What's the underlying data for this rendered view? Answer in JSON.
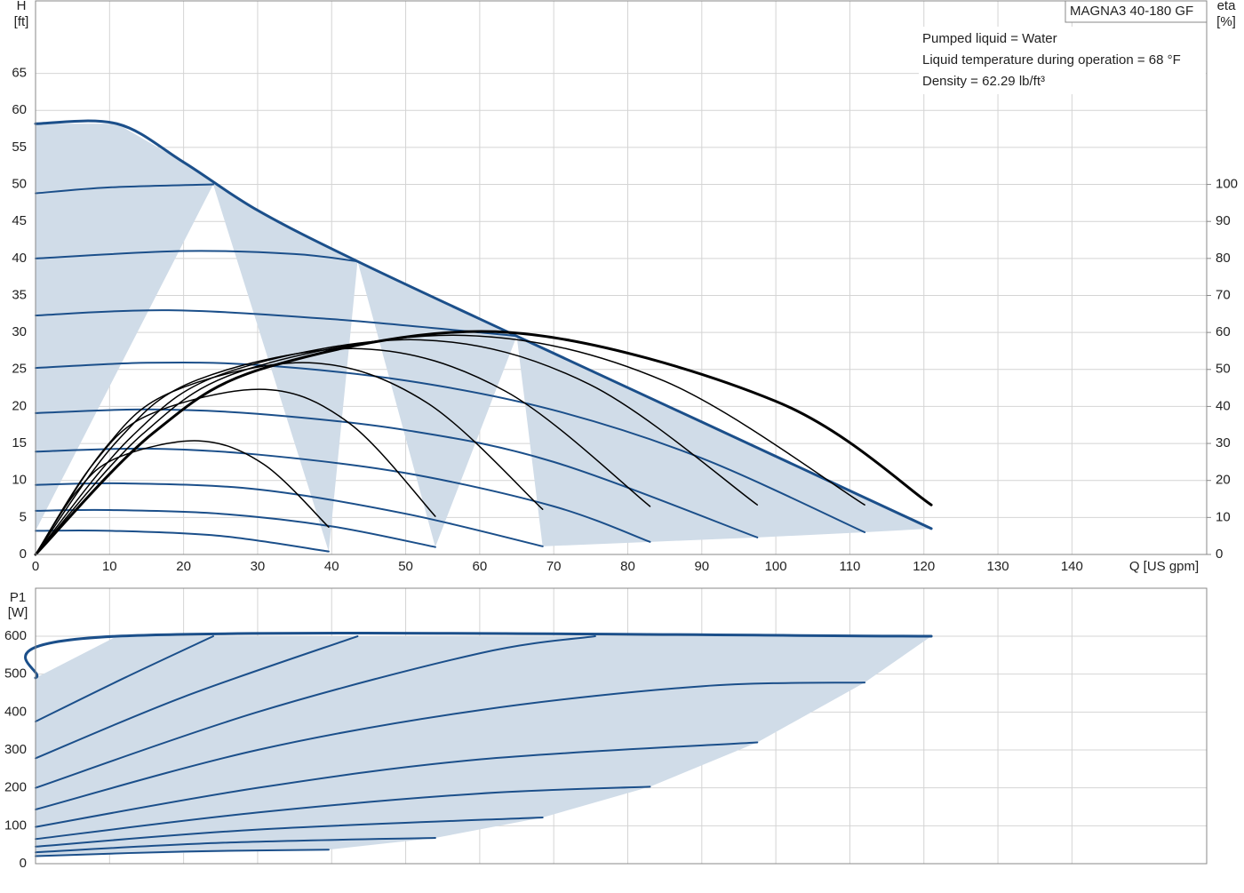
{
  "title": "MAGNA3 40-180 GF",
  "notes": [
    "Pumped liquid = Water",
    "Liquid temperature during operation = 68 °F",
    "Density = 62.29 lb/ft³"
  ],
  "chart_data": [
    {
      "type": "line",
      "y_label": "H",
      "y_unit": "[ft]",
      "y2_label": "eta",
      "y2_unit": "[%]",
      "x_label": "Q [US gpm]",
      "xlim": [
        0,
        158.2
      ],
      "xticks": [
        0,
        10,
        20,
        30,
        40,
        50,
        60,
        70,
        80,
        90,
        100,
        110,
        120,
        130,
        140
      ],
      "ylim": [
        0,
        74.8
      ],
      "yticks": [
        0,
        5,
        10,
        15,
        20,
        25,
        30,
        35,
        40,
        45,
        50,
        55,
        60,
        65
      ],
      "y2lim": [
        0,
        149.6
      ],
      "y2ticks": [
        0,
        10,
        20,
        30,
        40,
        50,
        60,
        70,
        80,
        90,
        100
      ],
      "grid": true,
      "shade_color": "#d0dce8",
      "series": [
        {
          "color": "#1b4f8a",
          "width": 3,
          "x": [
            0,
            11,
            20,
            30,
            43.5,
            65,
            90,
            121
          ],
          "values": [
            58.2,
            58.2,
            53,
            46.5,
            39.6,
            29.5,
            17.9,
            3.5
          ]
        },
        {
          "color": "#1b4f8a",
          "width": 2,
          "x": [
            0,
            10,
            24
          ],
          "values": [
            48.8,
            49.6,
            50
          ]
        },
        {
          "color": "#1b4f8a",
          "width": 2,
          "x": [
            0,
            20,
            35,
            43.5
          ],
          "values": [
            40,
            41,
            40.6,
            39.6
          ]
        },
        {
          "color": "#1b4f8a",
          "width": 2,
          "x": [
            0,
            18,
            40,
            60,
            65
          ],
          "values": [
            32.3,
            33,
            31.8,
            30,
            29.5
          ]
        },
        {
          "color": "#1b4f8a",
          "width": 2,
          "x": [
            0,
            15,
            30,
            50,
            70,
            90,
            112
          ],
          "values": [
            25.2,
            25.9,
            25.6,
            23.5,
            19.5,
            13,
            3
          ]
        },
        {
          "color": "#1b4f8a",
          "width": 2,
          "x": [
            0,
            15,
            30,
            50,
            70,
            97.5
          ],
          "values": [
            19.1,
            19.6,
            19,
            16.8,
            12.5,
            2.3
          ]
        },
        {
          "color": "#1b4f8a",
          "width": 2,
          "x": [
            0,
            15,
            30,
            50,
            70,
            83
          ],
          "values": [
            13.9,
            14.3,
            13.5,
            11,
            6.5,
            1.7
          ]
        },
        {
          "color": "#1b4f8a",
          "width": 2,
          "x": [
            0,
            12,
            30,
            50,
            68.5
          ],
          "values": [
            9.4,
            9.6,
            8.8,
            5.5,
            1.1
          ]
        },
        {
          "color": "#1b4f8a",
          "width": 2,
          "x": [
            0,
            10,
            25,
            40,
            54
          ],
          "values": [
            5.9,
            6,
            5.5,
            3.8,
            1
          ]
        },
        {
          "color": "#1b4f8a",
          "width": 2,
          "x": [
            0,
            10,
            25,
            39.6
          ],
          "values": [
            3.2,
            3.2,
            2.5,
            0.4
          ]
        },
        {
          "color": "#000000",
          "width": 1.5,
          "axis": "y2",
          "x": [
            0,
            5.5,
            11,
            22,
            30.8,
            39.6
          ],
          "values": [
            0,
            16.9,
            26.1,
            30.7,
            24.4,
            7.4
          ]
        },
        {
          "color": "#000000",
          "width": 1.5,
          "axis": "y2",
          "x": [
            0,
            7.8,
            15.5,
            31,
            42.5,
            54
          ],
          "values": [
            0,
            24.5,
            37.9,
            44.6,
            35.3,
            10.3
          ]
        },
        {
          "color": "#000000",
          "width": 1.5,
          "axis": "y2",
          "x": [
            0,
            9.3,
            18.5,
            37,
            52.8,
            68.5
          ],
          "values": [
            0,
            28.5,
            44,
            51.8,
            41.1,
            12.2
          ]
        },
        {
          "color": "#000000",
          "width": 1.5,
          "axis": "y2",
          "x": [
            0,
            11,
            22,
            44,
            63.5,
            83
          ],
          "values": [
            0,
            30.6,
            47.3,
            55.6,
            44.1,
            13
          ]
        },
        {
          "color": "#000000",
          "width": 1.5,
          "axis": "y2",
          "x": [
            0,
            13,
            26,
            52,
            74.8,
            97.5
          ],
          "values": [
            0,
            31.9,
            49.3,
            58,
            46,
            13.4
          ]
        },
        {
          "color": "#000000",
          "width": 1.5,
          "axis": "y2",
          "x": [
            0,
            14.5,
            29,
            58,
            85,
            112
          ],
          "values": [
            0,
            32.6,
            50.3,
            59.2,
            46.8,
            13.4
          ]
        },
        {
          "color": "#000000",
          "width": 3,
          "axis": "y2",
          "x": [
            0,
            16,
            32,
            64,
            100,
            121
          ],
          "values": [
            0,
            33,
            51,
            60,
            41.4,
            13.4
          ]
        }
      ]
    },
    {
      "type": "line",
      "y_label": "P1",
      "y_unit": "[W]",
      "xlim": [
        0,
        158.2
      ],
      "ylim": [
        0,
        726.6
      ],
      "yticks": [
        0,
        100,
        200,
        300,
        400,
        500,
        600
      ],
      "grid": true,
      "shade_color": "#d0dce8",
      "series": [
        {
          "color": "#1b4f8a",
          "width": 3,
          "x": [
            0,
            11,
            121
          ],
          "values": [
            490,
            600,
            600
          ]
        },
        {
          "color": "#1b4f8a",
          "width": 2,
          "x": [
            0,
            12,
            24
          ],
          "values": [
            375,
            490,
            600
          ]
        },
        {
          "color": "#1b4f8a",
          "width": 2,
          "x": [
            0,
            20,
            43.5
          ],
          "values": [
            278,
            440,
            600
          ]
        },
        {
          "color": "#1b4f8a",
          "width": 2,
          "x": [
            0,
            30,
            60,
            75.6
          ],
          "values": [
            200,
            400,
            555,
            600
          ]
        },
        {
          "color": "#1b4f8a",
          "width": 2,
          "x": [
            0,
            30,
            60,
            90,
            112
          ],
          "values": [
            143,
            300,
            405,
            468,
            478
          ]
        },
        {
          "color": "#1b4f8a",
          "width": 2,
          "x": [
            0,
            30,
            60,
            97.5
          ],
          "values": [
            97,
            200,
            275,
            320
          ]
        },
        {
          "color": "#1b4f8a",
          "width": 2,
          "x": [
            0,
            30,
            60,
            83
          ],
          "values": [
            65,
            135,
            185,
            203
          ]
        },
        {
          "color": "#1b4f8a",
          "width": 2,
          "x": [
            0,
            30,
            68.5
          ],
          "values": [
            45,
            90,
            122
          ]
        },
        {
          "color": "#1b4f8a",
          "width": 2,
          "x": [
            0,
            25,
            54
          ],
          "values": [
            30,
            55,
            68
          ]
        },
        {
          "color": "#1b4f8a",
          "width": 2,
          "x": [
            0,
            20,
            39.6
          ],
          "values": [
            20,
            32,
            37
          ]
        }
      ]
    }
  ]
}
